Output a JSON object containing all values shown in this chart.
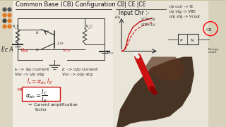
{
  "bg_left_color": "#c8c0a0",
  "bg_right_color": "#c8bfa0",
  "whiteboard_color": "#eeeade",
  "whiteboard_left": "#f0ece2",
  "whiteboard_right": "#e8e4d8",
  "title": "Common Base (CB) Configuration",
  "dots_left": [
    "#555555",
    "#555555",
    "#e07820",
    "#e07820",
    "#444444",
    "#e07820",
    "#e07820",
    "#e07820"
  ],
  "dots_right": [
    "#555555",
    "#555555",
    "#e07820",
    "#e07820",
    "#444444",
    "#e07820",
    "#e07820",
    "#e07820"
  ],
  "ec_label": "Ec A",
  "panel_header": "CB| CE |CE",
  "input_chr": "Input Chr :-",
  "text_ie_ip": "Ie -> i/p current",
  "text_vbs_ip": "Vbs -> i/p vtg",
  "text_ic_op": "Ic -> o/p current",
  "text_vcb_op": "VcB -> o/p vtg",
  "formula1": "Ic = alpha_dc IE",
  "formula2": "alpha_dc = Ic / IE",
  "cur_amp": "Current amplification factor",
  "hand_color": "#3a2515",
  "hand_highlight": "#5a3520",
  "pen_red": "#cc1111",
  "pen_white": "#f0f0f0",
  "curve_color": "#cc1111",
  "text_color": "#222222",
  "red_text": "#cc1111",
  "ann_ip_curr": "i/p curr -> IE",
  "ann_ip_vtg": "i/p vtg -> VBE",
  "ann_op_vtg": "o/p vtg -> Vcout",
  "vcb5v": "VCB=5V",
  "vcb1v": "VCB=1V"
}
